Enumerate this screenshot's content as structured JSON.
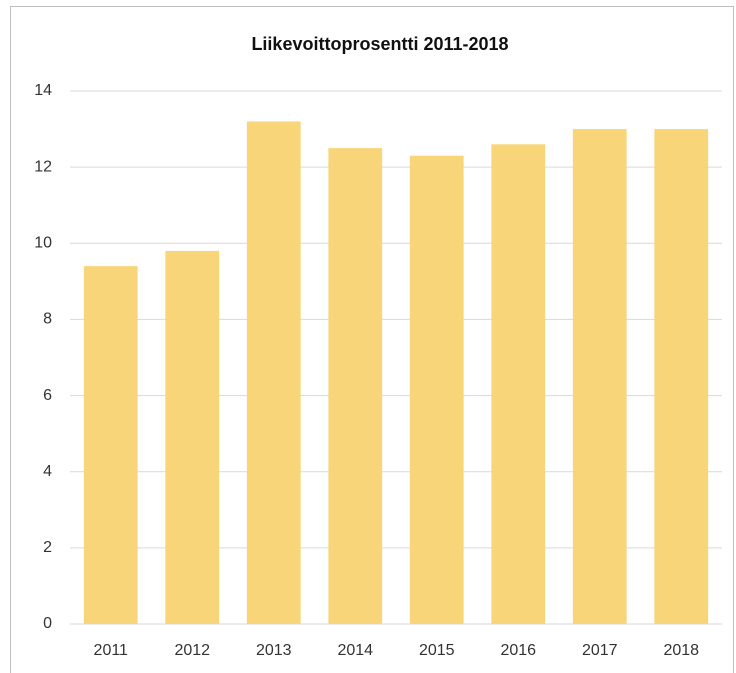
{
  "chart_data": {
    "type": "bar",
    "title": "Liikevoittoprosentti 2011-2018",
    "categories": [
      "2011",
      "2012",
      "2013",
      "2014",
      "2015",
      "2016",
      "2017",
      "2018"
    ],
    "values": [
      9.4,
      9.8,
      13.2,
      12.5,
      12.3,
      12.6,
      13.0,
      13.0
    ],
    "color": "#f9d57a",
    "ylim": [
      0,
      14
    ],
    "yticks": [
      0,
      2,
      4,
      6,
      8,
      10,
      12,
      14
    ],
    "grid": true
  }
}
